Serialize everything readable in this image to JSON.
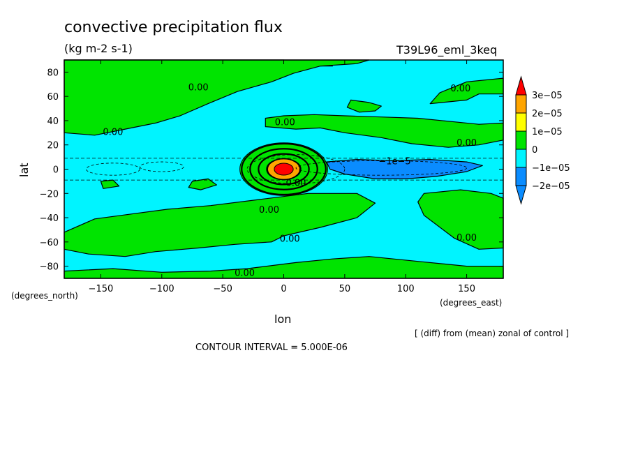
{
  "chart_data": {
    "type": "heatmap",
    "title": "convective precipitation flux",
    "units": "(kg m-2 s-1)",
    "experiment": "T39L96_eml_3keq",
    "xlabel": "lon",
    "ylabel": "lat",
    "x_unit_label": "(degrees_east)",
    "y_unit_label": "(degrees_north)",
    "xlim": [
      -180,
      180
    ],
    "ylim": [
      -90,
      90
    ],
    "x_ticks": [
      -150,
      -100,
      -50,
      0,
      50,
      100,
      150
    ],
    "x_tick_labels": [
      "−150",
      "−100",
      "−50",
      "0",
      "50",
      "100",
      "150"
    ],
    "y_ticks": [
      80,
      60,
      40,
      20,
      0,
      -20,
      -40,
      -60,
      -80
    ],
    "y_tick_labels": [
      "80",
      "60",
      "40",
      "20",
      "0",
      "−20",
      "−40",
      "−60",
      "−80"
    ],
    "background_value_color": "#00f4ff",
    "colorbar": {
      "levels": [
        -2e-05,
        -1e-05,
        0,
        1e-05,
        2e-05,
        3e-05
      ],
      "labels": [
        "−2e−05",
        "−1e−05",
        "0",
        "1e−05",
        "2e−05",
        "3e−05"
      ],
      "colors": [
        "#0a8cff",
        "#00f4ff",
        "#00e400",
        "#ffff00",
        "#ffa500",
        "#ff0000"
      ]
    },
    "regions": [
      {
        "kind": "positive",
        "color": "#00e400",
        "lonlat": [
          [
            -180,
            85
          ],
          [
            -100,
            85
          ],
          [
            -40,
            80
          ],
          [
            0,
            85
          ],
          [
            40,
            85
          ],
          [
            0,
            90
          ],
          [
            -180,
            90
          ]
        ]
      },
      {
        "kind": "positive",
        "color": "#00e400",
        "lonlat": [
          [
            -180,
            90
          ],
          [
            -180,
            30
          ],
          [
            -155,
            28
          ],
          [
            -130,
            33
          ],
          [
            -105,
            38
          ],
          [
            -85,
            44
          ],
          [
            -62,
            54
          ],
          [
            -38,
            64
          ],
          [
            -10,
            72
          ],
          [
            8,
            79
          ],
          [
            30,
            85
          ],
          [
            60,
            87
          ],
          [
            70,
            90
          ]
        ]
      },
      {
        "kind": "positive",
        "color": "#00e400",
        "lonlat": [
          [
            -15,
            35
          ],
          [
            10,
            33
          ],
          [
            30,
            34
          ],
          [
            50,
            30
          ],
          [
            80,
            26
          ],
          [
            105,
            21
          ],
          [
            135,
            18
          ],
          [
            160,
            20
          ],
          [
            180,
            24
          ],
          [
            180,
            62
          ],
          [
            160,
            62
          ],
          [
            150,
            57
          ],
          [
            130,
            55
          ],
          [
            120,
            54
          ],
          [
            128,
            63
          ],
          [
            150,
            72
          ],
          [
            180,
            75
          ],
          [
            180,
            38
          ],
          [
            160,
            37
          ],
          [
            140,
            39
          ],
          [
            110,
            42
          ],
          [
            80,
            43
          ],
          [
            50,
            44
          ],
          [
            25,
            45
          ],
          [
            0,
            44
          ],
          [
            -15,
            42
          ]
        ]
      },
      {
        "kind": "positive",
        "color": "#00e400",
        "lonlat": [
          [
            55,
            57
          ],
          [
            70,
            55
          ],
          [
            80,
            52
          ],
          [
            75,
            48
          ],
          [
            62,
            47
          ],
          [
            52,
            51
          ]
        ]
      },
      {
        "kind": "positive",
        "color": "#00e400",
        "lonlat": [
          [
            -180,
            -52
          ],
          [
            -155,
            -41
          ],
          [
            -125,
            -37
          ],
          [
            -95,
            -33
          ],
          [
            -60,
            -30
          ],
          [
            -20,
            -25
          ],
          [
            20,
            -20
          ],
          [
            60,
            -20
          ],
          [
            75,
            -28
          ],
          [
            60,
            -40
          ],
          [
            30,
            -48
          ],
          [
            0,
            -55
          ],
          [
            -10,
            -60
          ],
          [
            -40,
            -62
          ],
          [
            -70,
            -65
          ],
          [
            -105,
            -68
          ],
          [
            -130,
            -72
          ],
          [
            -160,
            -70
          ],
          [
            -180,
            -66
          ]
        ]
      },
      {
        "kind": "positive",
        "color": "#00e400",
        "lonlat": [
          [
            -180,
            -90
          ],
          [
            180,
            -90
          ],
          [
            180,
            -80
          ],
          [
            150,
            -80
          ],
          [
            110,
            -76
          ],
          [
            70,
            -72
          ],
          [
            40,
            -74
          ],
          [
            10,
            -77
          ],
          [
            -30,
            -82
          ],
          [
            -60,
            -84
          ],
          [
            -100,
            -85
          ],
          [
            -140,
            -82
          ],
          [
            -180,
            -84
          ]
        ]
      },
      {
        "kind": "positive",
        "color": "#00e400",
        "lonlat": [
          [
            115,
            -20
          ],
          [
            145,
            -17
          ],
          [
            170,
            -20
          ],
          [
            180,
            -24
          ],
          [
            180,
            -65
          ],
          [
            160,
            -66
          ],
          [
            140,
            -57
          ],
          [
            115,
            -38
          ],
          [
            110,
            -27
          ]
        ]
      },
      {
        "kind": "positive",
        "color": "#00e400",
        "lonlat": [
          [
            -75,
            -10
          ],
          [
            -62,
            -8
          ],
          [
            -55,
            -13
          ],
          [
            -68,
            -17
          ],
          [
            -78,
            -15
          ]
        ]
      },
      {
        "kind": "positive",
        "color": "#00e400",
        "lonlat": [
          [
            -150,
            -10
          ],
          [
            -140,
            -9
          ],
          [
            -135,
            -14
          ],
          [
            -148,
            -16
          ]
        ]
      },
      {
        "kind": "negative",
        "color": "#0a8cff",
        "lonlat": [
          [
            35,
            6
          ],
          [
            60,
            8
          ],
          [
            90,
            7
          ],
          [
            120,
            8
          ],
          [
            150,
            6
          ],
          [
            163,
            3
          ],
          [
            150,
            -2
          ],
          [
            125,
            -6
          ],
          [
            100,
            -8
          ],
          [
            75,
            -8
          ],
          [
            50,
            -4
          ],
          [
            38,
            0
          ]
        ]
      },
      {
        "kind": "max",
        "color": "#ff0000",
        "center": [
          0,
          0
        ],
        "radius_deg": [
          6,
          3.5
        ]
      }
    ],
    "contour_labels": [
      {
        "text": "0.00",
        "lon": -70,
        "lat": 68
      },
      {
        "text": "0.00",
        "lon": -140,
        "lat": 31
      },
      {
        "text": "0.00",
        "lon": 1,
        "lat": 39
      },
      {
        "text": "0.00",
        "lon": 145,
        "lat": 67
      },
      {
        "text": "0.00",
        "lon": 150,
        "lat": 22
      },
      {
        "text": "−1e−5",
        "lon": 91,
        "lat": 7
      },
      {
        "text": "0.00",
        "lon": 10,
        "lat": -11
      },
      {
        "text": "0.00",
        "lon": -12,
        "lat": -33
      },
      {
        "text": "0.00",
        "lon": 5,
        "lat": -57
      },
      {
        "text": "0.00",
        "lon": 150,
        "lat": -56
      },
      {
        "text": "0.00",
        "lon": -32,
        "lat": -85
      }
    ],
    "annotation": "[ (diff) from (mean) zonal of control ]",
    "contour_interval": "CONTOUR INTERVAL = 5.000E-06"
  }
}
